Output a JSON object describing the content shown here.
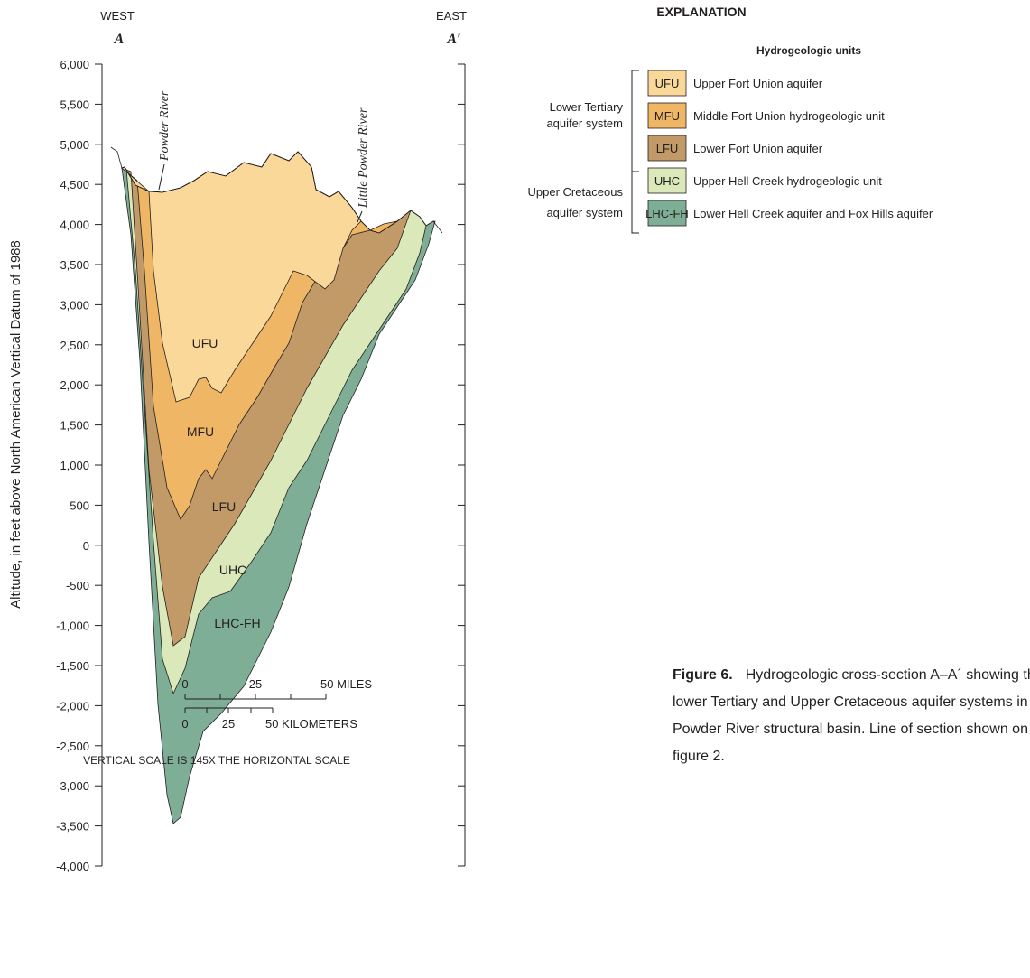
{
  "header": {
    "west": "WEST",
    "west_letter": "A",
    "east": "EAST",
    "east_letter": "A′"
  },
  "axis": {
    "title": "Altitude, in feet above North American Vertical Datum of 1988",
    "ticks": [
      "6,000",
      "5,500",
      "5,000",
      "4,500",
      "4,000",
      "3,500",
      "3,000",
      "2,500",
      "2,000",
      "1,500",
      "1,000",
      "500",
      "0",
      "-500",
      "-1,000",
      "-1,500",
      "-2,000",
      "-2,500",
      "-3,000",
      "-3,500",
      "-4,000"
    ]
  },
  "section": {
    "units": [
      "UFU",
      "MFU",
      "LFU",
      "UHC",
      "LHC-FH"
    ],
    "rivers": [
      "Powder River",
      "Little Powder River"
    ]
  },
  "scale": {
    "miles": [
      "0",
      "25",
      "50 MILES"
    ],
    "kilometers": [
      "0",
      "25",
      "50 KILOMETERS"
    ],
    "note": "VERTICAL SCALE IS 145X THE HORIZONTAL SCALE"
  },
  "legend": {
    "title": "EXPLANATION",
    "subtitle": "Hydrogeologic units",
    "groups": [
      {
        "label": [
          "Lower Tertiary",
          "aquifer system"
        ]
      },
      {
        "label": [
          "Upper Cretaceous",
          "aquifer system"
        ]
      }
    ],
    "items": [
      {
        "code": "UFU",
        "text": "Upper Fort Union aquifer"
      },
      {
        "code": "MFU",
        "text": "Middle Fort Union hydrogeologic unit"
      },
      {
        "code": "LFU",
        "text": "Lower Fort Union aquifer"
      },
      {
        "code": "UHC",
        "text": "Upper Hell Creek hydrogeologic unit"
      },
      {
        "code": "LHC-FH",
        "text": "Lower Hell Creek aquifer and Fox Hills aquifer"
      }
    ]
  },
  "caption": {
    "label": "Figure 6.",
    "lines": [
      "Hydrogeologic cross-section A–A´ showing the",
      "lower Tertiary and Upper Cretaceous aquifer systems in the",
      "Powder River structural basin. Line of section shown on",
      "figure 2."
    ]
  }
}
